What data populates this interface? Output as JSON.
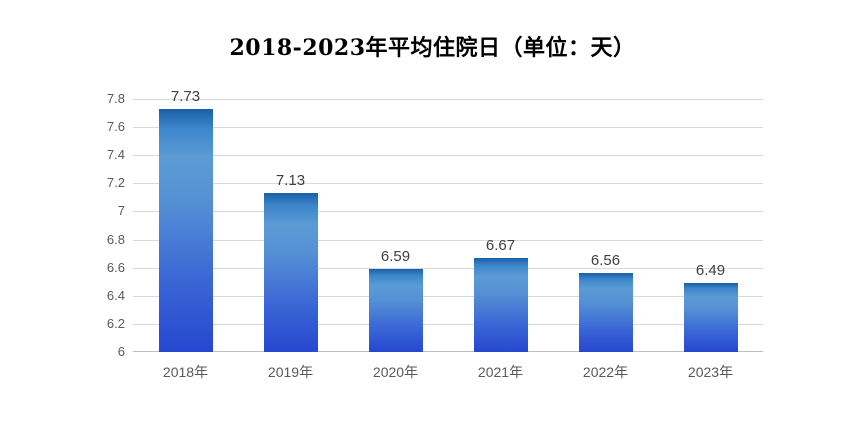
{
  "chart_data": {
    "type": "bar",
    "title": "2018-2023年平均住院日（单位：天）",
    "categories": [
      "2018年",
      "2019年",
      "2020年",
      "2021年",
      "2022年",
      "2023年"
    ],
    "values": [
      7.73,
      7.13,
      6.59,
      6.67,
      6.56,
      6.49
    ],
    "value_labels": [
      "7.73",
      "7.13",
      "6.59",
      "6.67",
      "6.56",
      "6.49"
    ],
    "xlabel": "",
    "ylabel": "",
    "ylim": [
      6,
      7.8
    ],
    "y_tick_labels": [
      "7.8",
      "7.6",
      "7.4",
      "7.2",
      "7",
      "6.8",
      "6.6",
      "6.4",
      "6.2",
      "6"
    ],
    "y_tick_values": [
      7.8,
      7.6,
      7.4,
      7.2,
      7.0,
      6.8,
      6.6,
      6.4,
      6.2,
      6.0
    ],
    "grid": "horizontal",
    "legend": "none",
    "style": {
      "background": "#ffffff",
      "gridline_color": "#d9d9d9",
      "axis_line_color": "#bfbfbf",
      "axis_label_color": "#595959",
      "value_label_color": "#404040",
      "title_color": "#000000",
      "bar_gradient_stops": [
        [
          "#1a5fa8",
          "0%"
        ],
        [
          "#3c86cb",
          "8%"
        ],
        [
          "#5b9bd5",
          "20%"
        ],
        [
          "#5590d5",
          "38%"
        ],
        [
          "#3b67d5",
          "70%"
        ],
        [
          "#2647d0",
          "100%"
        ]
      ]
    }
  }
}
